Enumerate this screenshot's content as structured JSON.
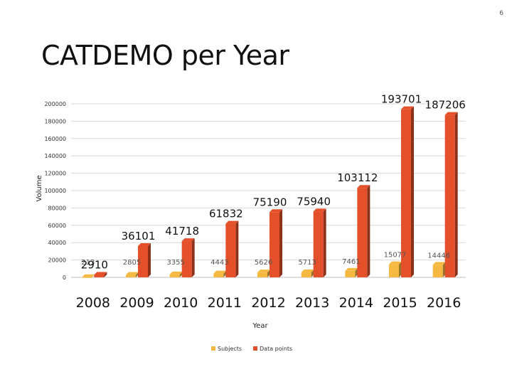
{
  "page": {
    "number": "6",
    "title": "CATDEMO per Year"
  },
  "colors": {
    "subjects": "#f5b942",
    "datapoints": "#e4502a",
    "grid": "#d9d9d9"
  },
  "chart_data": {
    "type": "bar",
    "title": "CATDEMO per Year",
    "xlabel": "Year",
    "ylabel": "Volume",
    "ylim": [
      0,
      200000
    ],
    "yticks": [
      0,
      20000,
      40000,
      60000,
      80000,
      100000,
      120000,
      140000,
      160000,
      180000,
      200000
    ],
    "categories": [
      "2008",
      "2009",
      "2010",
      "2011",
      "2012",
      "2013",
      "2014",
      "2015",
      "2016"
    ],
    "grid": true,
    "legend": "bottom",
    "series": [
      {
        "name": "Subjects",
        "values": [
          213,
          2805,
          3355,
          4443,
          5626,
          5713,
          7461,
          15077,
          14446
        ]
      },
      {
        "name": "Data points",
        "values": [
          2910,
          36101,
          41718,
          61832,
          75190,
          75940,
          103112,
          193701,
          187206
        ]
      }
    ]
  }
}
